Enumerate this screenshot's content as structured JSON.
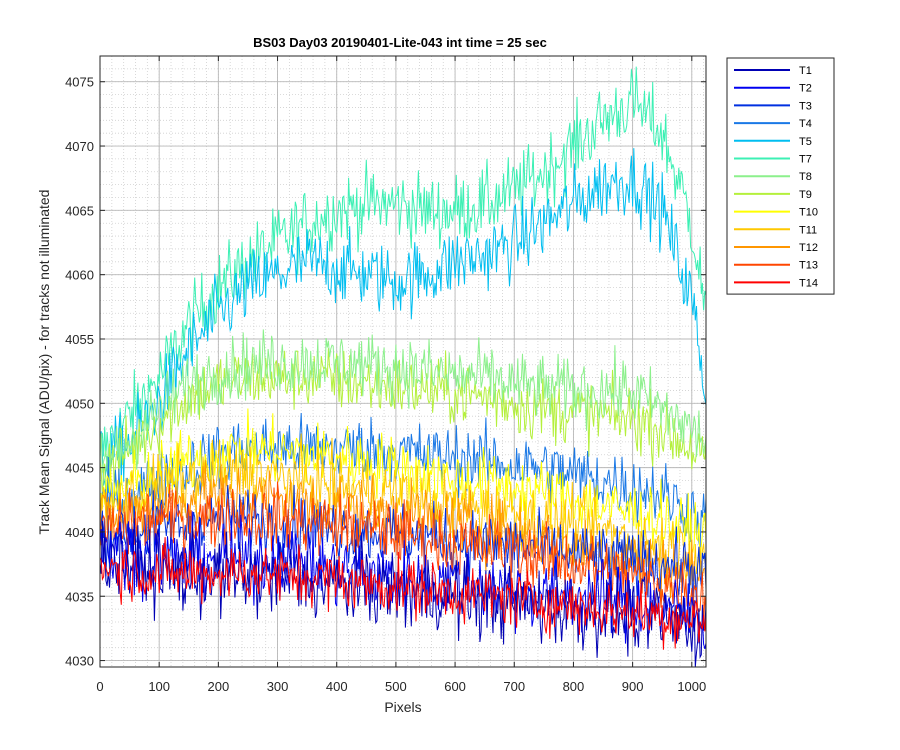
{
  "chart_data": {
    "type": "line",
    "title": "BS03 Day03 20190401-Lite-043 int time = 25 sec",
    "xlabel": "Pixels",
    "ylabel": "Track Mean Signal (ADU/pix) - for tracks not illuminated",
    "xlim": [
      0,
      1024
    ],
    "ylim": [
      4029.5,
      4077
    ],
    "x_ticks": [
      0,
      100,
      200,
      300,
      400,
      500,
      600,
      700,
      800,
      900,
      1000
    ],
    "y_ticks": [
      4030,
      4035,
      4040,
      4045,
      4050,
      4055,
      4060,
      4065,
      4070,
      4075
    ],
    "grid": true,
    "minor_grid": true,
    "legend_position": "outside-top-right",
    "x": [
      0,
      50,
      100,
      150,
      200,
      250,
      300,
      350,
      400,
      450,
      500,
      550,
      600,
      650,
      700,
      750,
      800,
      850,
      900,
      950,
      1000,
      1024
    ],
    "series": [
      {
        "name": "T1",
        "color": "#0000B4",
        "noise": 2.2,
        "values": [
          4038,
          4037.5,
          4037,
          4036.5,
          4036.5,
          4036.5,
          4036.5,
          4036.2,
          4036,
          4035.8,
          4035.5,
          4035.3,
          4035,
          4034.8,
          4034.5,
          4034.3,
          4034,
          4033.8,
          4033.5,
          4033.2,
          4032.8,
          4032.5
        ]
      },
      {
        "name": "T2",
        "color": "#0000F0",
        "noise": 2.0,
        "values": [
          4039,
          4038.5,
          4038,
          4037.8,
          4037.8,
          4038,
          4038,
          4037.5,
          4037,
          4036.8,
          4036.5,
          4036.2,
          4036,
          4035.8,
          4035.5,
          4035.2,
          4035,
          4034.8,
          4034.5,
          4034,
          4033.5,
          4033
        ]
      },
      {
        "name": "T3",
        "color": "#0030E0",
        "noise": 1.8,
        "values": [
          4040,
          4040,
          4040.5,
          4040.5,
          4041,
          4041,
          4040.8,
          4040.5,
          4040.2,
          4040,
          4039.8,
          4039.5,
          4039.3,
          4039,
          4038.8,
          4038.5,
          4038.3,
          4038,
          4037.8,
          4037.5,
          4037,
          4036.5
        ]
      },
      {
        "name": "T4",
        "color": "#1A78E6",
        "noise": 1.8,
        "values": [
          4042,
          4043,
          4044,
          4045,
          4046,
          4046.5,
          4046.5,
          4046.5,
          4046.5,
          4046.5,
          4046.3,
          4046,
          4045.8,
          4045.5,
          4045.2,
          4045,
          4044.5,
          4044,
          4043.5,
          4043,
          4041.5,
          4040.5
        ]
      },
      {
        "name": "T5",
        "color": "#00BEF0",
        "noise": 2.0,
        "values": [
          4045,
          4047,
          4050,
          4054,
          4057,
          4059,
          4060,
          4061,
          4060.5,
          4060,
          4059.5,
          4060,
          4061,
          4061.5,
          4062.5,
          4064,
          4065.5,
          4067,
          4067.5,
          4065,
          4058,
          4051
        ]
      },
      {
        "name": "T7",
        "color": "#3CF0B4",
        "noise": 2.0,
        "values": [
          4046,
          4049,
          4052,
          4056,
          4059,
          4061,
          4062.5,
          4064,
          4065,
          4065.5,
          4065.5,
          4065,
          4065,
          4065.5,
          4066.5,
          4068,
          4070,
          4072,
          4073.5,
          4071,
          4064,
          4057
        ]
      },
      {
        "name": "T8",
        "color": "#8CF08C",
        "noise": 1.8,
        "values": [
          4045,
          4047,
          4049.5,
          4051.5,
          4052.5,
          4053,
          4053.2,
          4053.2,
          4053.2,
          4053,
          4052.8,
          4052.5,
          4052.2,
          4052,
          4051.5,
          4051.2,
          4051,
          4051,
          4051,
          4049.5,
          4048,
          4047
        ]
      },
      {
        "name": "T9",
        "color": "#B4F03C",
        "noise": 1.8,
        "values": [
          4044.5,
          4046.5,
          4048.5,
          4050.5,
          4051.5,
          4052,
          4052,
          4052,
          4051.8,
          4051.5,
          4051.3,
          4051,
          4050.8,
          4050.5,
          4050,
          4049.5,
          4049.3,
          4049,
          4048.8,
          4048,
          4046.5,
          4045.5
        ]
      },
      {
        "name": "T10",
        "color": "#FFFF00",
        "noise": 1.8,
        "values": [
          4042.5,
          4043.5,
          4044.5,
          4045.5,
          4046,
          4046.3,
          4046.3,
          4046,
          4045.8,
          4045.5,
          4045,
          4044.5,
          4044,
          4043.8,
          4043.5,
          4043,
          4042.5,
          4042,
          4041.5,
          4041,
          4040,
          4039.5
        ]
      },
      {
        "name": "T11",
        "color": "#FFC800",
        "noise": 1.8,
        "values": [
          4041.5,
          4042.5,
          4043.5,
          4044,
          4044.5,
          4044.5,
          4044.3,
          4044,
          4043.5,
          4043.2,
          4043,
          4042.5,
          4042,
          4041.8,
          4041.5,
          4041,
          4040.5,
          4040,
          4039.5,
          4039,
          4038.5,
          4038
        ]
      },
      {
        "name": "T12",
        "color": "#FF9600",
        "noise": 1.8,
        "values": [
          4041,
          4041.5,
          4042,
          4042.5,
          4042.8,
          4042.8,
          4042.5,
          4042.2,
          4042,
          4041.7,
          4041.3,
          4041,
          4040.5,
          4040.2,
          4040,
          4039.5,
          4039,
          4038.5,
          4038,
          4037.5,
          4037,
          4036.5
        ]
      },
      {
        "name": "T13",
        "color": "#FF4600",
        "noise": 1.8,
        "values": [
          4040,
          4040.5,
          4041,
          4041,
          4041.2,
          4041.2,
          4041,
          4040.8,
          4040.5,
          4040.2,
          4040,
          4039.5,
          4039,
          4038.8,
          4038.5,
          4038,
          4037.5,
          4037,
          4036.5,
          4036,
          4035.5,
          4035
        ]
      },
      {
        "name": "T14",
        "color": "#FF0000",
        "noise": 1.6,
        "values": [
          4037.5,
          4037,
          4036.8,
          4036.8,
          4036.8,
          4036.8,
          4036.6,
          4036.5,
          4036.3,
          4036,
          4035.8,
          4035.5,
          4035.3,
          4035,
          4034.8,
          4034.5,
          4034.3,
          4034,
          4033.8,
          4033.5,
          4033.2,
          4033
        ]
      }
    ]
  }
}
